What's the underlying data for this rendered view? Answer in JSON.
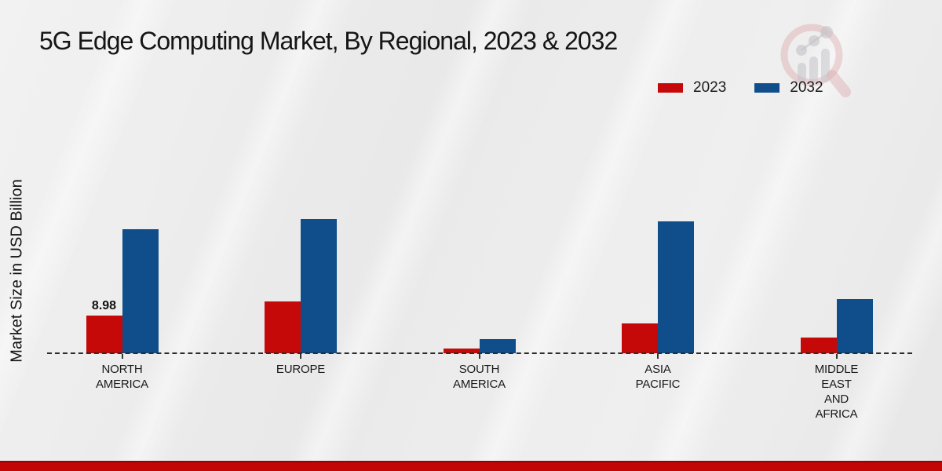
{
  "title": "5G Edge Computing Market, By Regional, 2023 & 2032",
  "ylabel": "Market Size in USD Billion",
  "colors": {
    "series_2023": "#c50808",
    "series_2032": "#0f4e8a",
    "footer_stripe": "#c20505",
    "footer_stripe_edge": "#940404",
    "background": "#ececec",
    "baseline": "#2b2b2b"
  },
  "legend": {
    "items": [
      {
        "label": "2023",
        "color": "#c50808"
      },
      {
        "label": "2032",
        "color": "#0f4e8a"
      }
    ]
  },
  "watermark_icon": "magnifier-bar-chart-logo-icon",
  "chart_data": {
    "type": "bar",
    "title": "5G Edge Computing Market, By Regional, 2023 & 2032",
    "xlabel": "",
    "ylabel": "Market Size in USD Billion",
    "categories": [
      "NORTH AMERICA",
      "EUROPE",
      "SOUTH AMERICA",
      "ASIA PACIFIC",
      "MIDDLE EAST AND AFRICA"
    ],
    "category_label_lines": [
      [
        "NORTH",
        "AMERICA"
      ],
      [
        "EUROPE"
      ],
      [
        "SOUTH",
        "AMERICA"
      ],
      [
        "ASIA",
        "PACIFIC"
      ],
      [
        "MIDDLE",
        "EAST",
        "AND",
        "AFRICA"
      ]
    ],
    "series": [
      {
        "name": "2023",
        "color": "#c50808",
        "values": [
          8.98,
          12.5,
          1.2,
          7.1,
          3.7
        ]
      },
      {
        "name": "2032",
        "color": "#0f4e8a",
        "values": [
          29.7,
          32.2,
          3.3,
          31.7,
          13.0
        ]
      }
    ],
    "data_labels": [
      {
        "series": "2023",
        "category": "NORTH AMERICA",
        "text": "8.98"
      }
    ],
    "ylim": [
      0,
      34
    ],
    "grid": false,
    "legend_position": "top-right",
    "baseline_style": "dashed",
    "y_axis_ticks_visible": false
  }
}
